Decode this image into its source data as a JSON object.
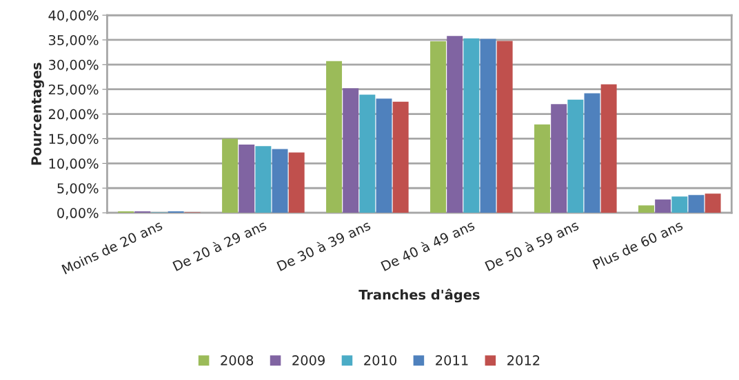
{
  "chart_data": {
    "type": "bar",
    "xlabel": "Tranches d'âges",
    "ylabel": "Pourcentages",
    "categories": [
      "Moins de 20 ans",
      "De 20 à 29 ans",
      "De 30 à 39 ans",
      "De 40 à 49 ans",
      "De 50 à 59 ans",
      "Plus de 60 ans"
    ],
    "series": [
      {
        "name": "2008",
        "color": "#9bbb59",
        "values": [
          0.3,
          15.0,
          30.7,
          34.7,
          17.9,
          1.5
        ]
      },
      {
        "name": "2009",
        "color": "#8064a2",
        "values": [
          0.3,
          13.8,
          25.2,
          35.8,
          22.0,
          2.7
        ]
      },
      {
        "name": "2010",
        "color": "#4bacc6",
        "values": [
          0.1,
          13.5,
          23.9,
          35.3,
          22.9,
          3.3
        ]
      },
      {
        "name": "2011",
        "color": "#4f81bd",
        "values": [
          0.3,
          12.9,
          23.1,
          35.2,
          24.2,
          3.6
        ]
      },
      {
        "name": "2012",
        "color": "#c0504d",
        "values": [
          0.1,
          12.2,
          22.5,
          34.8,
          26.0,
          3.9
        ]
      }
    ],
    "ylim": [
      0,
      40
    ],
    "yticks": [
      {
        "value": 0,
        "label": "0,00%"
      },
      {
        "value": 5,
        "label": "5,00%"
      },
      {
        "value": 10,
        "label": "10,00%"
      },
      {
        "value": 15,
        "label": "15,00%"
      },
      {
        "value": 20,
        "label": "20,00%"
      },
      {
        "value": 25,
        "label": "25,00%"
      },
      {
        "value": 30,
        "label": "30,00%"
      },
      {
        "value": 35,
        "label": "35,00%"
      },
      {
        "value": 40,
        "label": "40,00%"
      }
    ],
    "grid": "y",
    "legend": "bottom"
  }
}
